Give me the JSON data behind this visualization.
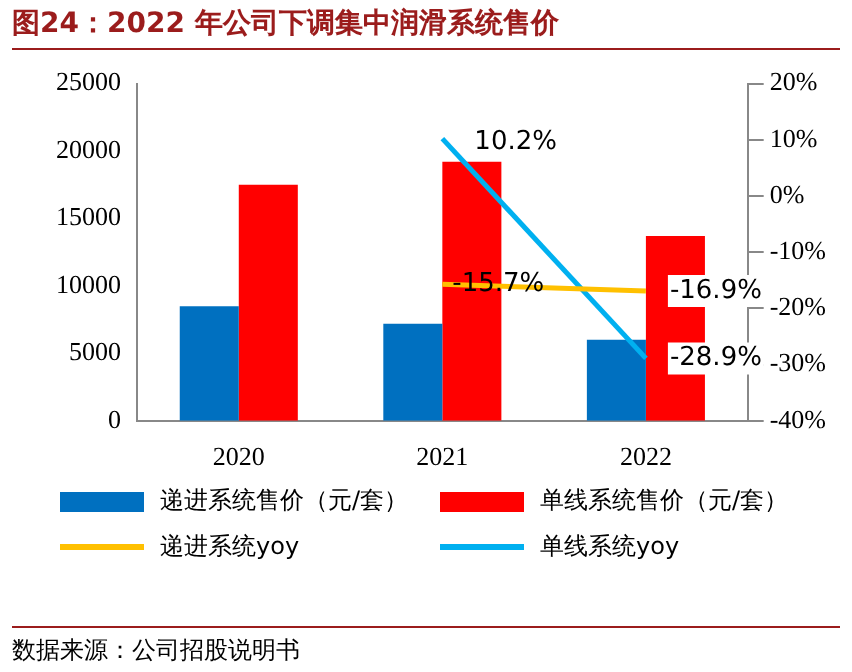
{
  "chart_data": {
    "type": "bar",
    "title": "图24：2022 年公司下调集中润滑系统售价",
    "categories": [
      "2020",
      "2021",
      "2022"
    ],
    "series": [
      {
        "name": "递进系统售价（元/套）",
        "color": "#0070c0",
        "values": [
          8500,
          7200,
          6000
        ]
      },
      {
        "name": "单线系统售价（元/套）",
        "color": "#ff0000",
        "values": [
          17500,
          19200,
          13700
        ]
      },
      {
        "name": "递进系统yoy",
        "type": "line",
        "axis": "y2",
        "color": "#ffc000",
        "values": [
          null,
          -15.7,
          -16.9
        ],
        "value_labels": [
          null,
          "-15.7%",
          "-16.9%"
        ]
      },
      {
        "name": "单线系统yoy",
        "type": "line",
        "axis": "y2",
        "color": "#00b0f0",
        "values": [
          null,
          10.2,
          -28.9
        ],
        "value_labels": [
          null,
          "10.2%",
          "-28.9%"
        ]
      }
    ],
    "ylim": [
      0,
      25000
    ],
    "yticks": [
      0,
      5000,
      10000,
      15000,
      20000,
      25000
    ],
    "y2lim": [
      -40,
      20
    ],
    "y2ticks": [
      {
        "value": -40,
        "label": "-40%"
      },
      {
        "value": -30,
        "label": "-30%"
      },
      {
        "value": -20,
        "label": "-20%"
      },
      {
        "value": -10,
        "label": "-10%"
      },
      {
        "value": 0,
        "label": "0%"
      },
      {
        "value": 10,
        "label": "10%"
      },
      {
        "value": 20,
        "label": "20%"
      }
    ],
    "grid": false,
    "legend": "bottom",
    "marker": "none",
    "line_style": "solid",
    "annotations": [
      "数据来源：公司招股说明书"
    ]
  }
}
